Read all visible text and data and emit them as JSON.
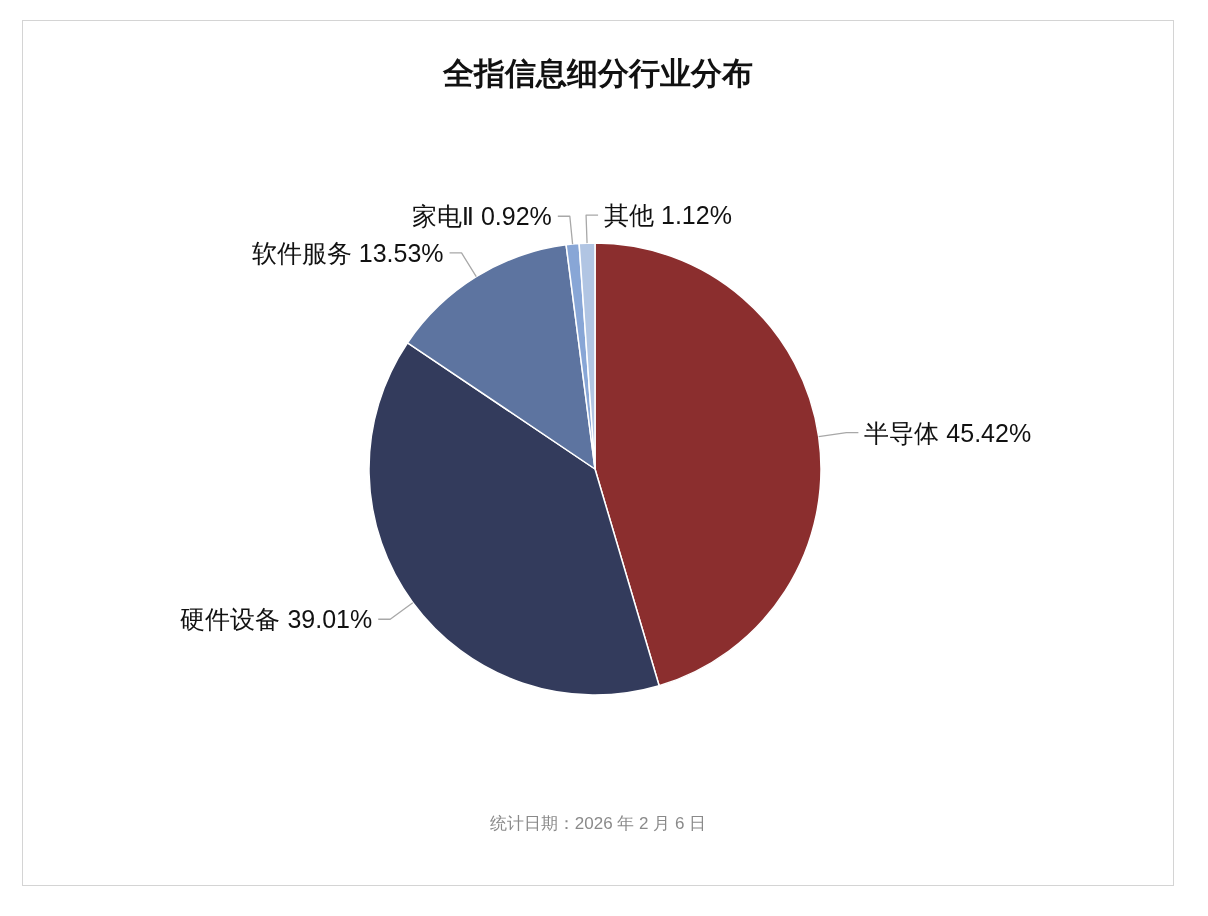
{
  "chart_data": {
    "type": "pie",
    "title": "全指信息细分行业分布",
    "categories": [
      "半导体",
      "硬件设备",
      "软件服务",
      "家电Ⅱ",
      "其他"
    ],
    "values": [
      45.42,
      39.01,
      13.53,
      0.92,
      1.12
    ],
    "colors": [
      "#8b2e2e",
      "#333b5c",
      "#5d74a0",
      "#88a6d6",
      "#b1c5e3"
    ],
    "value_labels": [
      "45.42%",
      "39.01%",
      "13.53%",
      "0.92%",
      "1.12%"
    ],
    "annotations": [
      "统计日期：2026 年 2 月 6 日"
    ]
  }
}
